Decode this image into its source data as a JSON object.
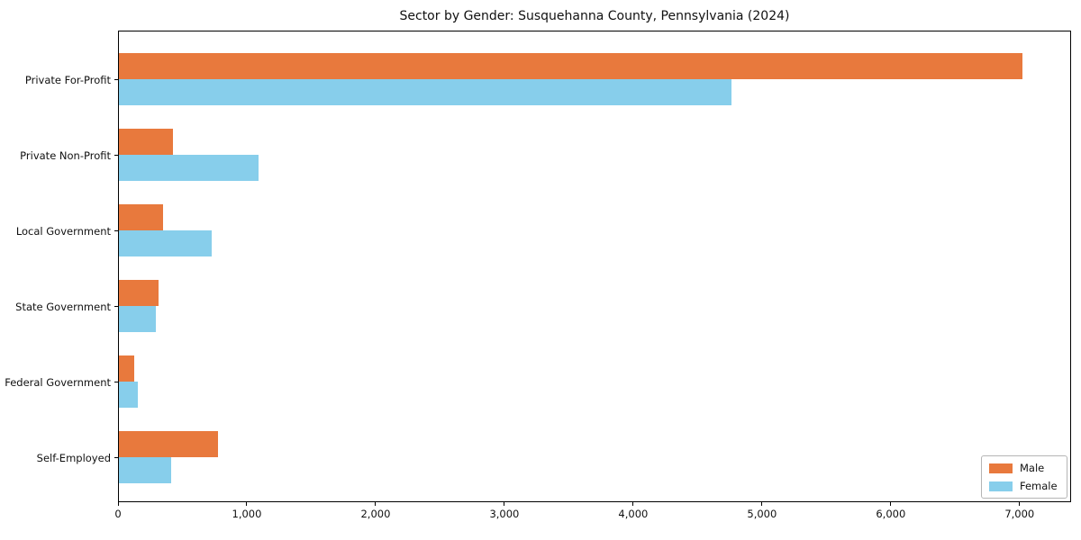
{
  "chart_data": {
    "type": "bar",
    "orientation": "horizontal",
    "title": "Sector by Gender: Susquehanna County, Pennsylvania (2024)",
    "categories": [
      "Private For-Profit",
      "Private Non-Profit",
      "Local Government",
      "State Government",
      "Federal Government",
      "Self-Employed"
    ],
    "series": [
      {
        "name": "Male",
        "color": "#e8793d",
        "values": [
          7025,
          425,
          350,
          318,
          128,
          778
        ]
      },
      {
        "name": "Female",
        "color": "#87ceeb",
        "values": [
          4765,
          1093,
          730,
          297,
          152,
          413
        ]
      }
    ],
    "xlabel": "",
    "ylabel": "",
    "xlim": [
      0,
      7400
    ],
    "xtick_values": [
      0,
      1000,
      2000,
      3000,
      4000,
      5000,
      6000,
      7000
    ],
    "xtick_labels": [
      "0",
      "1,000",
      "2,000",
      "3,000",
      "4,000",
      "5,000",
      "6,000",
      "7,000"
    ],
    "grid": false,
    "legend": {
      "position": "lower right",
      "entries": [
        "Male",
        "Female"
      ]
    },
    "background_color": "#ffffff",
    "axis_color": "#000000"
  }
}
